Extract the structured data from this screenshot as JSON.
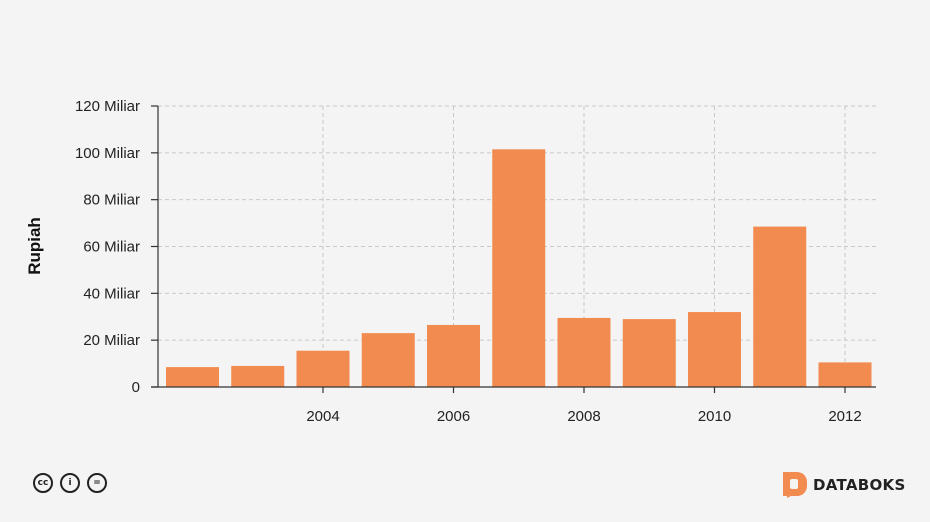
{
  "chart_data": {
    "type": "bar",
    "title": "",
    "xlabel": "",
    "ylabel": "Rupiah",
    "x": [
      2002,
      2003,
      2004,
      2005,
      2006,
      2007,
      2008,
      2009,
      2010,
      2011,
      2012
    ],
    "values": [
      8.5,
      9.0,
      15.5,
      23.0,
      26.5,
      101.5,
      29.5,
      29.0,
      32.0,
      68.5,
      10.5
    ],
    "ylim": [
      0,
      120
    ],
    "yticks": [
      0,
      20,
      40,
      60,
      80,
      100,
      120
    ],
    "ytick_labels": [
      "0",
      "20 Miliar",
      "40 Miliar",
      "60 Miliar",
      "80 Miliar",
      "100 Miliar",
      "120 Miliar"
    ],
    "xticks": [
      2004,
      2006,
      2008,
      2010,
      2012
    ],
    "xtick_labels": [
      "2004",
      "2006",
      "2008",
      "2010",
      "2012"
    ],
    "bar_color": "#f28b4f",
    "grid": true,
    "legend": "none"
  },
  "footer": {
    "license_icons": [
      "cc-icon",
      "by-icon",
      "nd-icon"
    ],
    "license_glyphs": [
      "cc",
      "i",
      "="
    ],
    "brand_name": "DATABOKS",
    "brand_color": "#f28b4f"
  }
}
